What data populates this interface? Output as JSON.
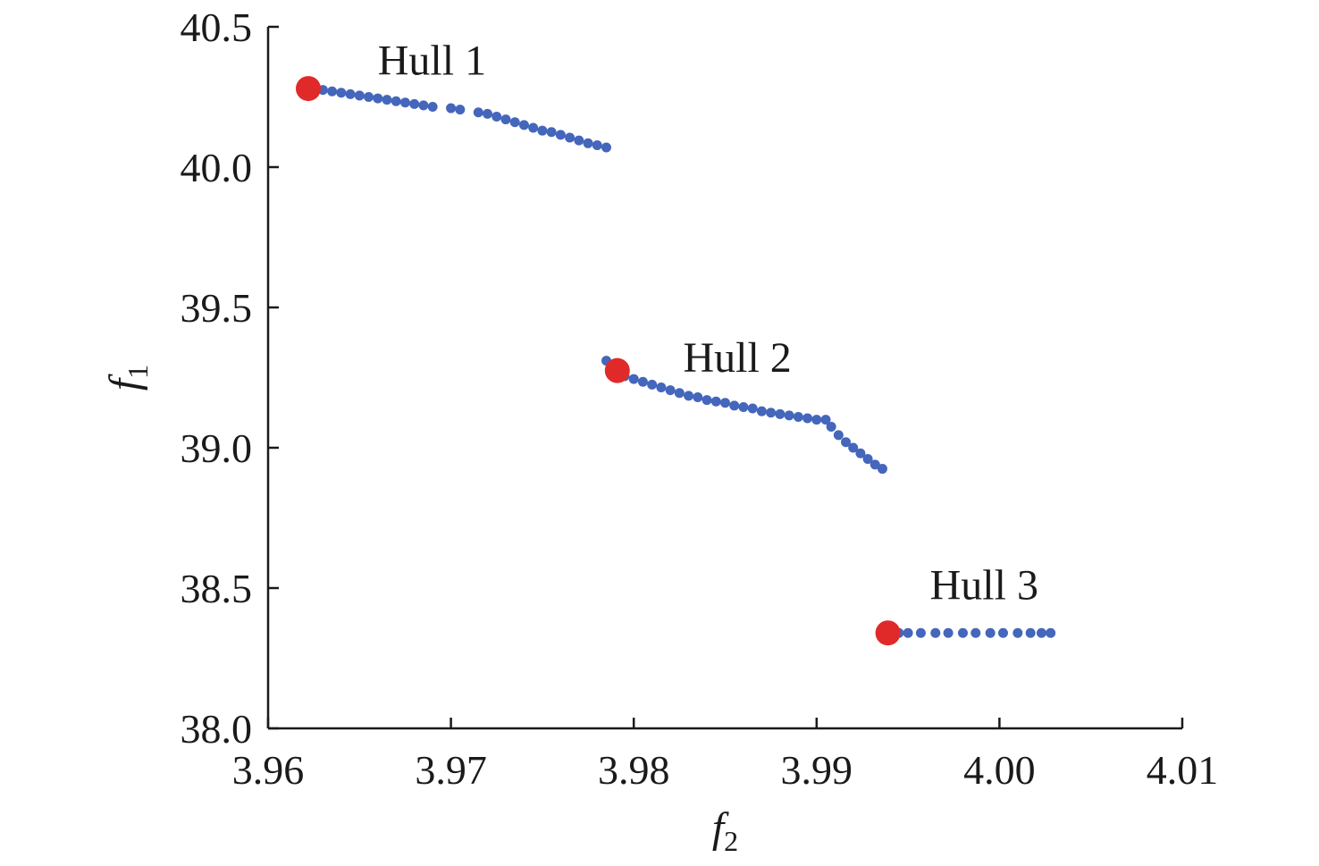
{
  "chart_data": {
    "type": "scatter",
    "xlabel": {
      "base": "f",
      "sub": "2"
    },
    "ylabel": {
      "base": "f",
      "sub": "1"
    },
    "xlim": [
      3.96,
      4.01
    ],
    "ylim": [
      38.0,
      40.5
    ],
    "xticks": [
      3.96,
      3.97,
      3.98,
      3.99,
      4.0,
      4.01
    ],
    "xtick_labels": [
      "3.96",
      "3.97",
      "3.98",
      "3.99",
      "4.00",
      "4.01"
    ],
    "yticks": [
      38.0,
      38.5,
      39.0,
      39.5,
      40.0,
      40.5
    ],
    "ytick_labels": [
      "38.0",
      "38.5",
      "39.0",
      "39.5",
      "40.0",
      "40.5"
    ],
    "colors": {
      "front": "#4466bb",
      "highlight": "#e02a2a"
    },
    "series": [
      {
        "id": "hull-1",
        "color": "#4466bb",
        "x": [
          3.9625,
          3.963,
          3.9635,
          3.964,
          3.9645,
          3.965,
          3.9655,
          3.966,
          3.9665,
          3.967,
          3.9675,
          3.968,
          3.9685,
          3.969,
          3.97,
          3.9705,
          3.9715,
          3.972,
          3.9725,
          3.973,
          3.9735,
          3.974,
          3.9745,
          3.975,
          3.9755,
          3.976,
          3.9765,
          3.977,
          3.9775,
          3.978,
          3.9785
        ],
        "y": [
          40.28,
          40.275,
          40.27,
          40.265,
          40.26,
          40.255,
          40.25,
          40.245,
          40.24,
          40.235,
          40.23,
          40.225,
          40.22,
          40.215,
          40.21,
          40.205,
          40.195,
          40.19,
          40.18,
          40.17,
          40.16,
          40.15,
          40.14,
          40.13,
          40.125,
          40.115,
          40.105,
          40.095,
          40.085,
          40.078,
          40.07
        ]
      },
      {
        "id": "hull-2",
        "color": "#4466bb",
        "x": [
          3.9785,
          3.9788,
          3.9795,
          3.98,
          3.9805,
          3.981,
          3.9815,
          3.982,
          3.9825,
          3.983,
          3.9835,
          3.984,
          3.9845,
          3.985,
          3.9855,
          3.986,
          3.9865,
          3.987,
          3.9875,
          3.988,
          3.9885,
          3.989,
          3.9895,
          3.99,
          3.9905,
          3.9908,
          3.9912,
          3.9916,
          3.992,
          3.9924,
          3.9928,
          3.9932,
          3.9936
        ],
        "y": [
          39.31,
          39.29,
          39.255,
          39.245,
          39.235,
          39.225,
          39.215,
          39.205,
          39.195,
          39.185,
          39.18,
          39.17,
          39.165,
          39.16,
          39.15,
          39.145,
          39.14,
          39.13,
          39.125,
          39.12,
          39.115,
          39.11,
          39.105,
          39.1,
          39.1,
          39.075,
          39.045,
          39.02,
          39.0,
          38.98,
          38.96,
          38.94,
          38.925
        ]
      },
      {
        "id": "hull-3",
        "color": "#4466bb",
        "x": [
          3.9945,
          3.995,
          3.9957,
          3.9965,
          3.9972,
          3.998,
          3.9987,
          3.9995,
          4.0002,
          4.001,
          4.0017,
          4.0023,
          4.0028
        ],
        "y": [
          38.34,
          38.34,
          38.34,
          38.34,
          38.34,
          38.34,
          38.34,
          38.34,
          38.34,
          38.34,
          38.34,
          38.34,
          38.34
        ]
      }
    ],
    "highlights": [
      {
        "id": "hull-1-marker",
        "x": 3.9622,
        "y": 40.28
      },
      {
        "id": "hull-2-marker",
        "x": 3.9791,
        "y": 39.275
      },
      {
        "id": "hull-3-marker",
        "x": 3.9939,
        "y": 38.34
      }
    ],
    "annotations": [
      {
        "id": "hull-1-label",
        "text": "Hull 1",
        "x": 3.966,
        "y": 40.33
      },
      {
        "id": "hull-2-label",
        "text": "Hull 2",
        "x": 3.9827,
        "y": 39.27
      },
      {
        "id": "hull-3-label",
        "text": "Hull 3",
        "x": 3.9962,
        "y": 38.46
      }
    ]
  }
}
